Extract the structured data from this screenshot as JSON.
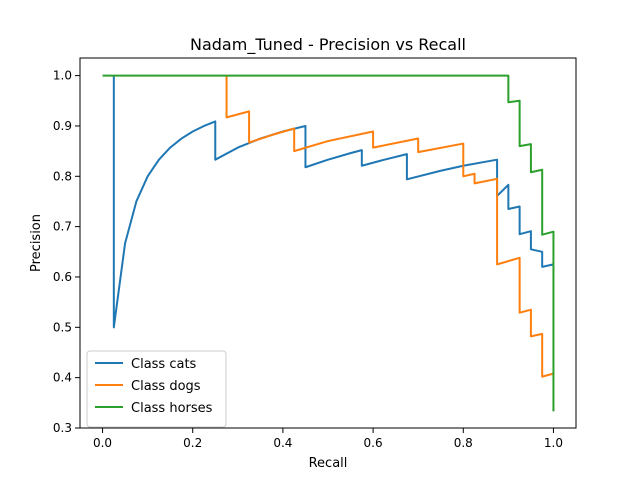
{
  "chart_data": {
    "type": "line",
    "title": "Nadam_Tuned - Precision vs Recall",
    "xlabel": "Recall",
    "ylabel": "Precision",
    "xlim": [
      -0.05,
      1.05
    ],
    "ylim": [
      0.3,
      1.035
    ],
    "xticks": [
      0.0,
      0.2,
      0.4,
      0.6,
      0.8,
      1.0
    ],
    "xtick_labels": [
      "0.0",
      "0.2",
      "0.4",
      "0.6",
      "0.8",
      "1.0"
    ],
    "yticks": [
      0.3,
      0.4,
      0.5,
      0.6,
      0.7,
      0.8,
      0.9,
      1.0
    ],
    "ytick_labels": [
      "0.3",
      "0.4",
      "0.5",
      "0.6",
      "0.7",
      "0.8",
      "0.9",
      "1.0"
    ],
    "grid": false,
    "legend": "lower-left",
    "series": [
      {
        "name": "Class cats",
        "color": "#1f77b4",
        "points": [
          [
            0.025,
            1.0
          ],
          [
            0.025,
            0.5
          ],
          [
            0.05,
            0.667
          ],
          [
            0.075,
            0.75
          ],
          [
            0.1,
            0.8
          ],
          [
            0.125,
            0.833
          ],
          [
            0.15,
            0.857
          ],
          [
            0.175,
            0.875
          ],
          [
            0.2,
            0.889
          ],
          [
            0.225,
            0.9
          ],
          [
            0.25,
            0.909
          ],
          [
            0.25,
            0.833
          ],
          [
            0.3,
            0.857
          ],
          [
            0.35,
            0.875
          ],
          [
            0.4,
            0.889
          ],
          [
            0.45,
            0.9
          ],
          [
            0.45,
            0.818
          ],
          [
            0.5,
            0.833
          ],
          [
            0.55,
            0.846
          ],
          [
            0.575,
            0.852
          ],
          [
            0.575,
            0.821
          ],
          [
            0.625,
            0.833
          ],
          [
            0.675,
            0.844
          ],
          [
            0.675,
            0.794
          ],
          [
            0.75,
            0.811
          ],
          [
            0.8,
            0.821
          ],
          [
            0.85,
            0.829
          ],
          [
            0.875,
            0.833
          ],
          [
            0.875,
            0.761
          ],
          [
            0.9,
            0.783
          ],
          [
            0.9,
            0.735
          ],
          [
            0.925,
            0.74
          ],
          [
            0.925,
            0.685
          ],
          [
            0.95,
            0.691
          ],
          [
            0.95,
            0.655
          ],
          [
            0.975,
            0.65
          ],
          [
            0.975,
            0.62
          ],
          [
            1.0,
            0.625
          ]
        ]
      },
      {
        "name": "Class dogs",
        "color": "#ff7f0e",
        "points": [
          [
            0.275,
            1.0
          ],
          [
            0.275,
            0.917
          ],
          [
            0.325,
            0.929
          ],
          [
            0.325,
            0.867
          ],
          [
            0.375,
            0.882
          ],
          [
            0.425,
            0.895
          ],
          [
            0.425,
            0.85
          ],
          [
            0.5,
            0.87
          ],
          [
            0.6,
            0.889
          ],
          [
            0.6,
            0.857
          ],
          [
            0.7,
            0.875
          ],
          [
            0.7,
            0.848
          ],
          [
            0.8,
            0.865
          ],
          [
            0.8,
            0.8
          ],
          [
            0.825,
            0.805
          ],
          [
            0.825,
            0.786
          ],
          [
            0.875,
            0.795
          ],
          [
            0.875,
            0.625
          ],
          [
            0.925,
            0.638
          ],
          [
            0.925,
            0.529
          ],
          [
            0.95,
            0.535
          ],
          [
            0.95,
            0.482
          ],
          [
            0.975,
            0.487
          ],
          [
            0.975,
            0.402
          ],
          [
            1.0,
            0.408
          ]
        ]
      },
      {
        "name": "Class horses",
        "color": "#2ca02c",
        "points": [
          [
            0.0,
            1.0
          ],
          [
            0.9,
            1.0
          ],
          [
            0.9,
            0.947
          ],
          [
            0.925,
            0.95
          ],
          [
            0.925,
            0.86
          ],
          [
            0.95,
            0.864
          ],
          [
            0.95,
            0.808
          ],
          [
            0.975,
            0.813
          ],
          [
            0.975,
            0.684
          ],
          [
            1.0,
            0.69
          ],
          [
            1.0,
            0.333
          ]
        ]
      }
    ]
  }
}
